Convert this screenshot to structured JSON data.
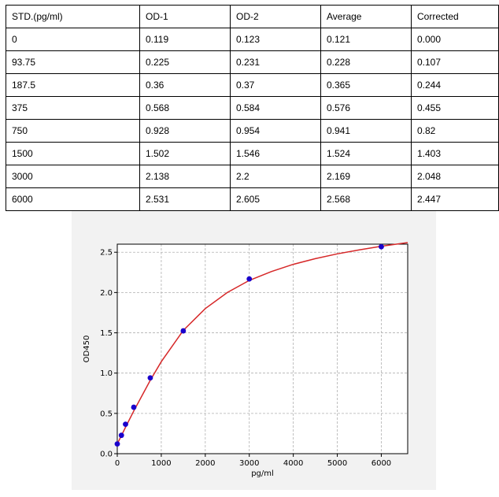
{
  "table": {
    "headers": [
      "STD.(pg/ml)",
      "OD-1",
      "OD-2",
      "Average",
      "Corrected"
    ],
    "rows": [
      [
        "0",
        "0.119",
        "0.123",
        "0.121",
        "0.000"
      ],
      [
        "93.75",
        "0.225",
        "0.231",
        "0.228",
        "0.107"
      ],
      [
        "187.5",
        "0.36",
        "0.37",
        "0.365",
        "0.244"
      ],
      [
        "375",
        "0.568",
        "0.584",
        "0.576",
        "0.455"
      ],
      [
        "750",
        "0.928",
        "0.954",
        "0.941",
        "0.82"
      ],
      [
        "1500",
        "1.502",
        "1.546",
        "1.524",
        "1.403"
      ],
      [
        "3000",
        "2.138",
        "2.2",
        "2.169",
        "2.048"
      ],
      [
        "6000",
        "2.531",
        "2.605",
        "2.568",
        "2.447"
      ]
    ]
  },
  "chart_data": {
    "type": "scatter",
    "title": "",
    "xlabel": "pg/ml",
    "ylabel": "OD450",
    "xlim": [
      0,
      6600
    ],
    "ylim": [
      0,
      2.6
    ],
    "x_ticks": [
      0,
      1000,
      2000,
      3000,
      4000,
      5000,
      6000
    ],
    "y_ticks": [
      0.0,
      0.5,
      1.0,
      1.5,
      2.0,
      2.5
    ],
    "x_tick_labels": [
      "0",
      "1000",
      "2000",
      "3000",
      "4000",
      "5000",
      "6000"
    ],
    "y_tick_labels": [
      "0.0",
      "0.5",
      "1.0",
      "1.5",
      "2.0",
      "2.5"
    ],
    "grid": true,
    "points": {
      "x": [
        0,
        93.75,
        187.5,
        375,
        750,
        1500,
        3000,
        6000
      ],
      "y": [
        0.121,
        0.228,
        0.365,
        0.576,
        0.941,
        1.524,
        2.169,
        2.568
      ]
    },
    "fit_curve": {
      "x": [
        0,
        100,
        200,
        375,
        750,
        1000,
        1500,
        2000,
        2500,
        3000,
        3500,
        4000,
        4500,
        5000,
        5500,
        6000,
        6600
      ],
      "y": [
        0.121,
        0.232,
        0.342,
        0.531,
        0.91,
        1.142,
        1.53,
        1.8,
        2.0,
        2.15,
        2.26,
        2.35,
        2.42,
        2.48,
        2.53,
        2.575,
        2.62
      ]
    },
    "colors": {
      "points": "#1a00cc",
      "curve": "#d62728",
      "grid": "#b0b0b0"
    }
  }
}
